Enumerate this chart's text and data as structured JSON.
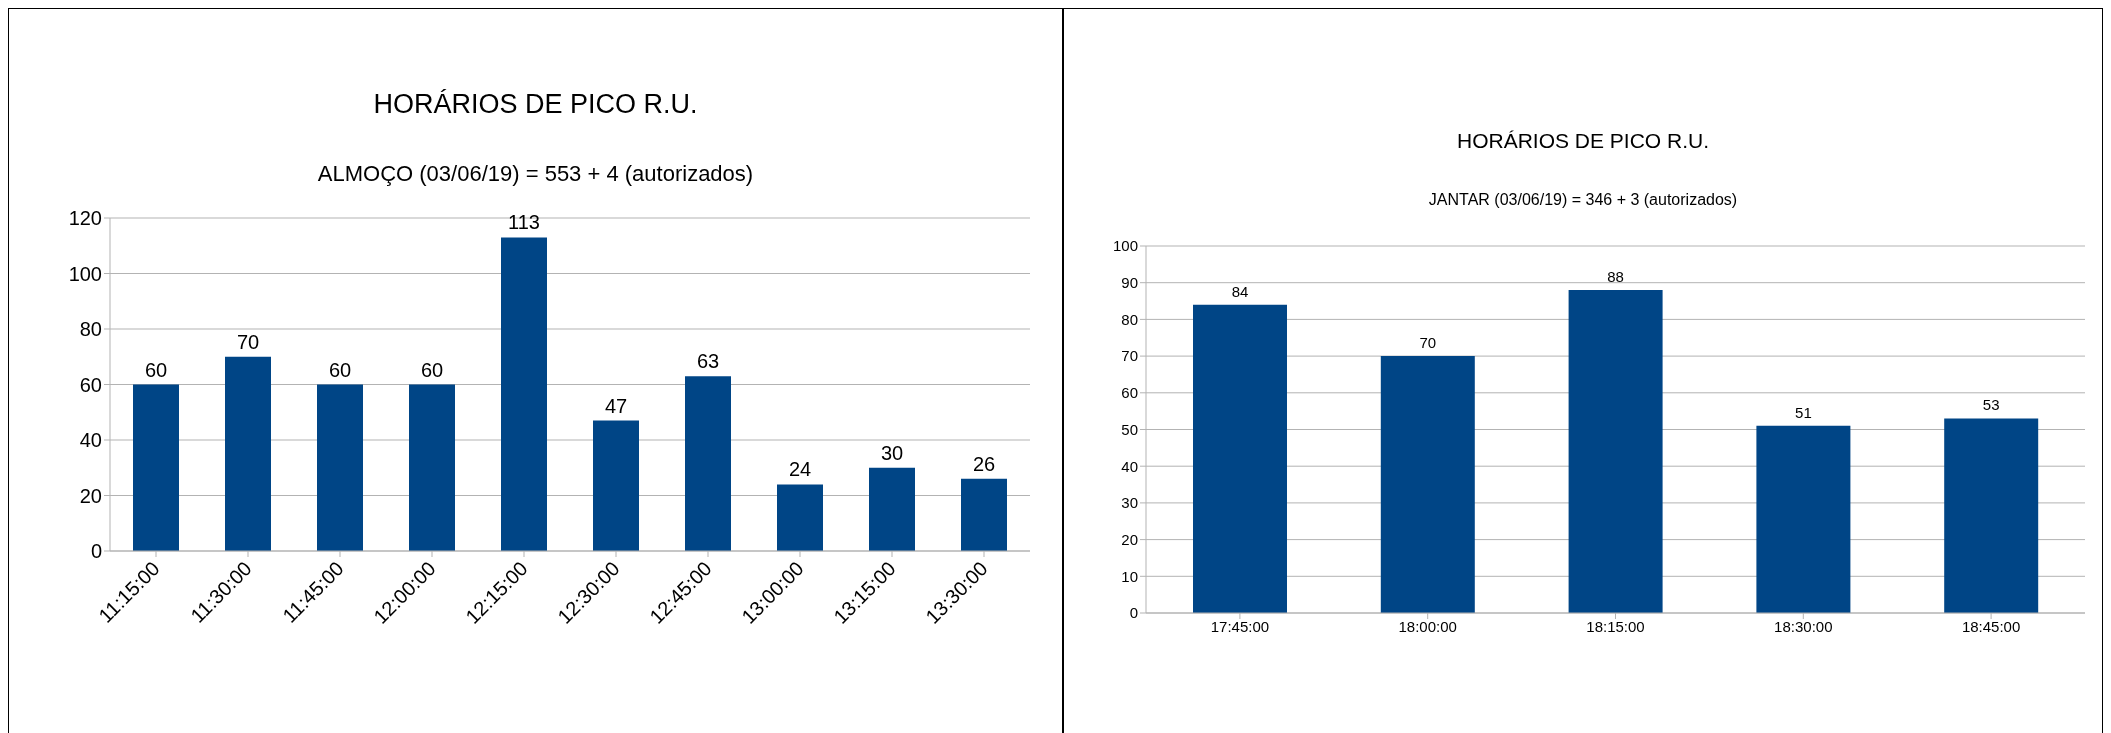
{
  "chart_data": [
    {
      "type": "bar",
      "title": "HORÁRIOS DE PICO R.U.",
      "subtitle": "ALMOÇO (03/06/19) = 553 + 4 (autorizados)",
      "categories": [
        "11:15:00",
        "11:30:00",
        "11:45:00",
        "12:00:00",
        "12:15:00",
        "12:30:00",
        "12:45:00",
        "13:00:00",
        "13:15:00",
        "13:30:00"
      ],
      "values": [
        60,
        70,
        60,
        60,
        113,
        47,
        63,
        24,
        30,
        26
      ],
      "color": "#004586",
      "ylim": [
        0,
        120
      ],
      "yticks": [
        0,
        20,
        40,
        60,
        80,
        100,
        120
      ],
      "grid": "y",
      "data_labels": true
    },
    {
      "type": "bar",
      "title": "HORÁRIOS DE PICO R.U.",
      "subtitle": "JANTAR (03/06/19) = 346 + 3 (autorizados)",
      "categories": [
        "17:45:00",
        "18:00:00",
        "18:15:00",
        "18:30:00",
        "18:45:00"
      ],
      "values": [
        84,
        70,
        88,
        51,
        53
      ],
      "color": "#004586",
      "ylim": [
        0,
        100
      ],
      "yticks": [
        0,
        10,
        20,
        30,
        40,
        50,
        60,
        70,
        80,
        90,
        100
      ],
      "grid": "y",
      "data_labels": true
    }
  ]
}
